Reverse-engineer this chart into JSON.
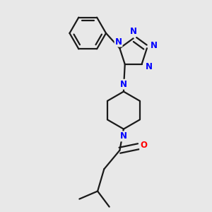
{
  "background_color": "#e8e8e8",
  "bond_color": "#1a1a1a",
  "nitrogen_color": "#0000ff",
  "oxygen_color": "#ff0000",
  "line_width": 1.6,
  "font_size_atom": 8.5,
  "figsize": [
    3.0,
    3.0
  ],
  "dpi": 100,
  "xlim": [
    -2.5,
    2.5
  ],
  "ylim": [
    -4.5,
    3.5
  ]
}
